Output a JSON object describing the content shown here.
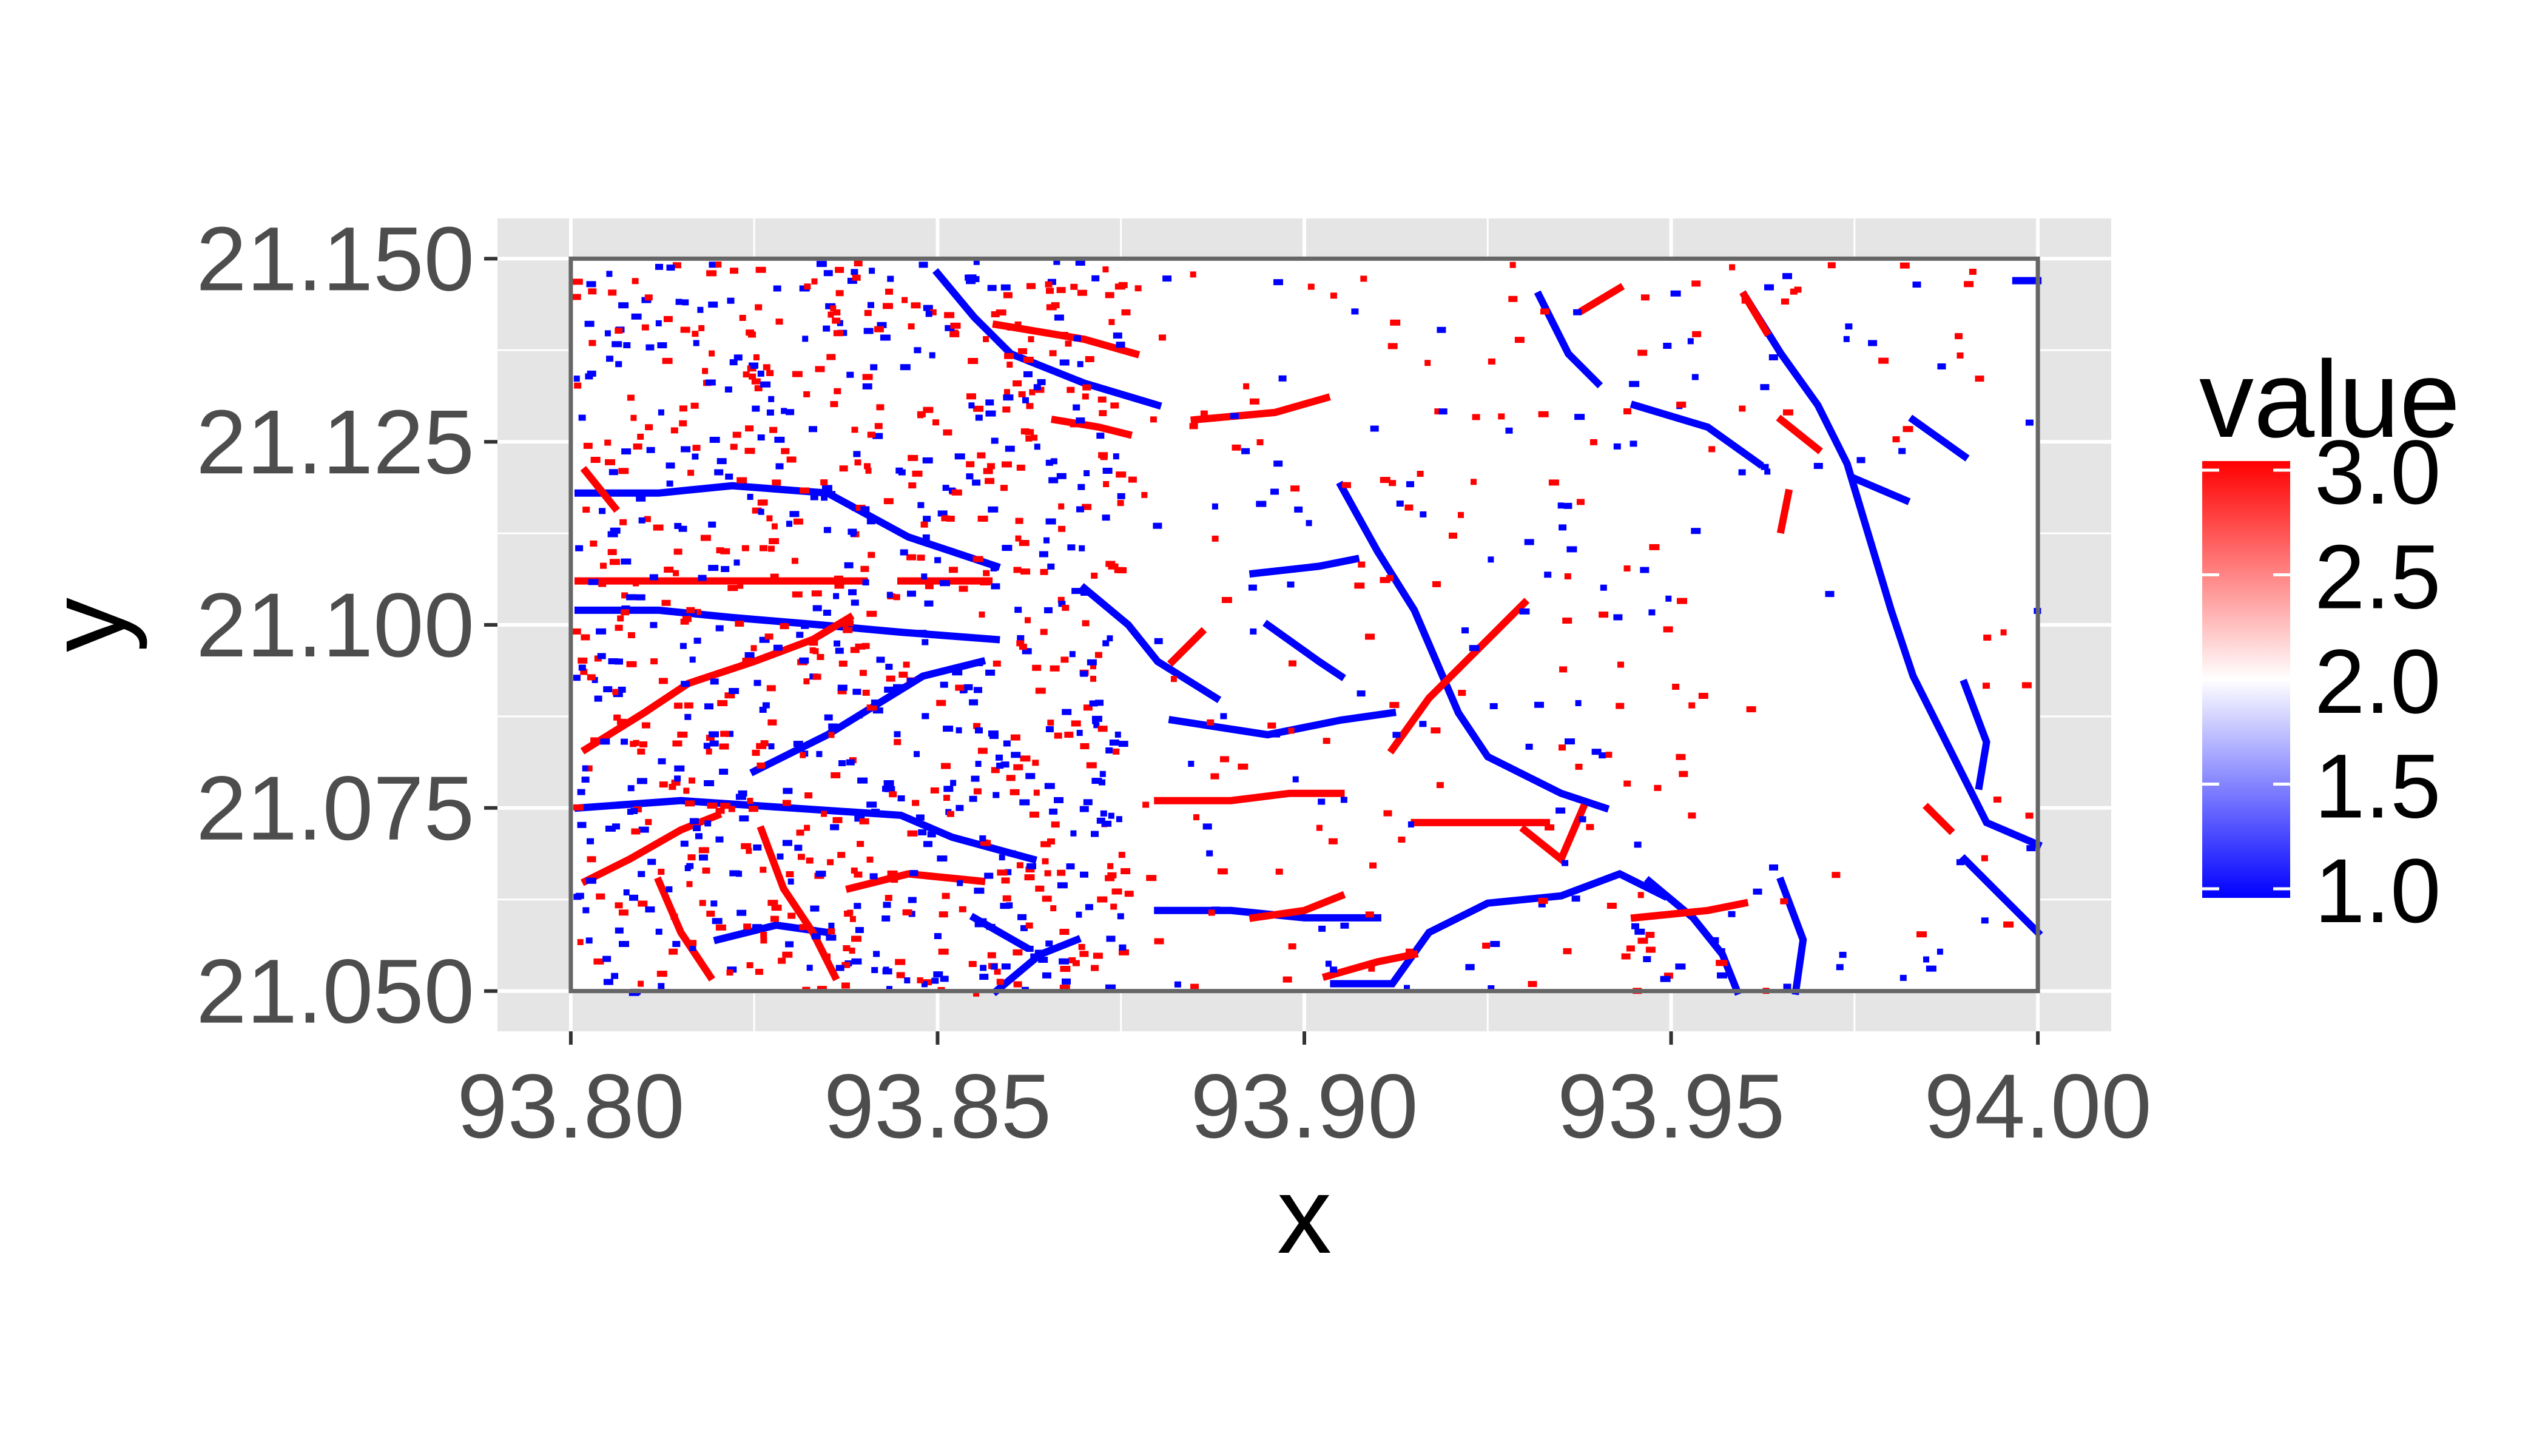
{
  "chart_data": {
    "type": "heatmap",
    "title": "",
    "xlabel": "x",
    "ylabel": "y",
    "xlim": [
      93.79,
      94.01
    ],
    "ylim": [
      21.0445,
      21.1555
    ],
    "x_ticks": [
      93.8,
      93.85,
      93.9,
      93.95,
      94.0
    ],
    "x_tick_labels": [
      "93.80",
      "93.85",
      "93.90",
      "93.95",
      "94.00"
    ],
    "y_ticks": [
      21.05,
      21.075,
      21.1,
      21.125,
      21.15
    ],
    "y_tick_labels": [
      "21.050",
      "21.075",
      "21.100",
      "21.125",
      "21.150"
    ],
    "raster_extent": {
      "x": [
        93.8,
        94.0
      ],
      "y": [
        21.05,
        21.15
      ]
    },
    "grid": true,
    "legend": {
      "title": "value",
      "placement": "right",
      "range": [
        1.0,
        3.0
      ],
      "breaks": [
        3.0,
        2.5,
        2.0,
        1.5,
        1.0
      ],
      "break_labels": [
        "3.0",
        "2.5",
        "2.0",
        "1.5",
        "1.0"
      ],
      "colors": {
        "low": "#0000ff",
        "mid": "#ffffff",
        "high": "#ff0000"
      },
      "midpoint": 2.0
    },
    "colors": {
      "panel_background": "#e5e5e5",
      "grid_line": "#ffffff",
      "raster_border": "#666666",
      "value_1": "#0000ff",
      "value_2": "#ffffff",
      "value_3": "#ff0000"
    },
    "series": [
      {
        "value": 1,
        "segments": [
          [
            [
              93.801,
              21.118
            ],
            [
              93.812,
              21.118
            ],
            [
              93.822,
              21.119
            ],
            [
              93.835,
              21.118
            ],
            [
              93.846,
              21.112
            ],
            [
              93.858,
              21.108
            ]
          ],
          [
            [
              93.801,
              21.102
            ],
            [
              93.812,
              21.102
            ],
            [
              93.822,
              21.101
            ],
            [
              93.834,
              21.1
            ],
            [
              93.845,
              21.099
            ],
            [
              93.858,
              21.098
            ]
          ],
          [
            [
              93.801,
              21.075
            ],
            [
              93.815,
              21.076
            ],
            [
              93.83,
              21.075
            ],
            [
              93.845,
              21.074
            ],
            [
              93.852,
              21.071
            ],
            [
              93.863,
              21.068
            ]
          ],
          [
            [
              93.825,
              21.08
            ],
            [
              93.835,
              21.085
            ],
            [
              93.848,
              21.093
            ],
            [
              93.856,
              21.095
            ]
          ],
          [
            [
              93.85,
              21.148
            ],
            [
              93.855,
              21.142
            ],
            [
              93.86,
              21.137
            ],
            [
              93.87,
              21.133
            ],
            [
              93.88,
              21.13
            ]
          ],
          [
            [
              93.82,
              21.057
            ],
            [
              93.828,
              21.059
            ],
            [
              93.835,
              21.058
            ]
          ],
          [
            [
              93.855,
              21.06
            ],
            [
              93.862,
              21.056
            ]
          ],
          [
            [
              93.858,
              21.05
            ],
            [
              93.864,
              21.055
            ],
            [
              93.869,
              21.057
            ]
          ],
          [
            [
              93.87,
              21.105
            ],
            [
              93.876,
              21.1
            ],
            [
              93.88,
              21.095
            ],
            [
              93.888,
              21.09
            ]
          ],
          [
            [
              93.882,
              21.087
            ],
            [
              93.895,
              21.085
            ],
            [
              93.905,
              21.087
            ],
            [
              93.912,
              21.088
            ]
          ],
          [
            [
              93.893,
              21.107
            ],
            [
              93.902,
              21.108
            ],
            [
              93.907,
              21.109
            ]
          ],
          [
            [
              93.905,
              21.119
            ],
            [
              93.91,
              21.11
            ],
            [
              93.915,
              21.102
            ],
            [
              93.918,
              21.095
            ],
            [
              93.921,
              21.088
            ],
            [
              93.925,
              21.082
            ],
            [
              93.935,
              21.077
            ],
            [
              93.941,
              21.075
            ]
          ],
          [
            [
              93.895,
              21.1
            ],
            [
              93.902,
              21.095
            ],
            [
              93.905,
              21.093
            ]
          ],
          [
            [
              93.88,
              21.061
            ],
            [
              93.89,
              21.061
            ],
            [
              93.9,
              21.06
            ],
            [
              93.91,
              21.06
            ]
          ],
          [
            [
              93.904,
              21.051
            ],
            [
              93.912,
              21.051
            ],
            [
              93.917,
              21.058
            ],
            [
              93.925,
              21.062
            ],
            [
              93.935,
              21.063
            ],
            [
              93.943,
              21.066
            ],
            [
              93.949,
              21.063
            ]
          ],
          [
            [
              93.947,
              21.065
            ],
            [
              93.953,
              21.06
            ],
            [
              93.957,
              21.055
            ],
            [
              93.959,
              21.05
            ]
          ],
          [
            [
              93.932,
              21.145
            ],
            [
              93.936,
              21.137
            ],
            [
              93.94,
              21.133
            ]
          ],
          [
            [
              93.945,
              21.13
            ],
            [
              93.955,
              21.127
            ],
            [
              93.962,
              21.122
            ]
          ],
          [
            [
              93.96,
              21.145
            ],
            [
              93.965,
              21.137
            ],
            [
              93.97,
              21.13
            ],
            [
              93.974,
              21.122
            ],
            [
              93.977,
              21.112
            ],
            [
              93.98,
              21.102
            ],
            [
              93.983,
              21.093
            ],
            [
              93.988,
              21.083
            ],
            [
              93.993,
              21.073
            ],
            [
              94.0,
              21.07
            ]
          ],
          [
            [
              93.99,
              21.123
            ],
            [
              93.983,
              21.128
            ]
          ],
          [
            [
              93.975,
              21.12
            ],
            [
              93.982,
              21.117
            ]
          ],
          [
            [
              93.99,
              21.068
            ],
            [
              93.995,
              21.063
            ],
            [
              94.0,
              21.058
            ]
          ],
          [
            [
              93.99,
              21.092
            ],
            [
              93.993,
              21.084
            ],
            [
              93.992,
              21.078
            ]
          ],
          [
            [
              93.965,
              21.065
            ],
            [
              93.968,
              21.057
            ],
            [
              93.967,
              21.05
            ]
          ],
          [
            [
              93.997,
              21.147
            ],
            [
              94.0,
              21.147
            ]
          ]
        ]
      },
      {
        "value": 3,
        "segments": [
          [
            [
              93.801,
              21.106
            ],
            [
              93.815,
              21.106
            ],
            [
              93.83,
              21.106
            ],
            [
              93.84,
              21.106
            ]
          ],
          [
            [
              93.845,
              21.106
            ],
            [
              93.857,
              21.106
            ]
          ],
          [
            [
              93.802,
              21.121
            ],
            [
              93.806,
              21.116
            ]
          ],
          [
            [
              93.802,
              21.083
            ],
            [
              93.81,
              21.088
            ],
            [
              93.816,
              21.092
            ],
            [
              93.825,
              21.095
            ],
            [
              93.833,
              21.098
            ],
            [
              93.838,
              21.101
            ]
          ],
          [
            [
              93.802,
              21.065
            ],
            [
              93.808,
              21.068
            ],
            [
              93.815,
              21.072
            ],
            [
              93.82,
              21.074
            ]
          ],
          [
            [
              93.812,
              21.065
            ],
            [
              93.815,
              21.058
            ],
            [
              93.819,
              21.052
            ]
          ],
          [
            [
              93.826,
              21.072
            ],
            [
              93.829,
              21.064
            ],
            [
              93.833,
              21.058
            ],
            [
              93.836,
              21.052
            ]
          ],
          [
            [
              93.838,
              21.064
            ],
            [
              93.846,
              21.066
            ],
            [
              93.856,
              21.065
            ]
          ],
          [
            [
              93.866,
              21.128
            ],
            [
              93.872,
              21.127
            ],
            [
              93.876,
              21.126
            ]
          ],
          [
            [
              93.858,
              21.141
            ],
            [
              93.87,
              21.139
            ],
            [
              93.877,
              21.137
            ]
          ],
          [
            [
              93.88,
              21.076
            ],
            [
              93.89,
              21.076
            ],
            [
              93.898,
              21.077
            ],
            [
              93.905,
              21.077
            ]
          ],
          [
            [
              93.903,
              21.052
            ],
            [
              93.91,
              21.054
            ],
            [
              93.915,
              21.055
            ]
          ],
          [
            [
              93.893,
              21.06
            ],
            [
              93.9,
              21.061
            ],
            [
              93.905,
              21.063
            ]
          ],
          [
            [
              93.915,
              21.073
            ],
            [
              93.925,
              21.073
            ],
            [
              93.933,
              21.073
            ]
          ],
          [
            [
              93.912,
              21.083
            ],
            [
              93.917,
              21.09
            ],
            [
              93.924,
              21.097
            ],
            [
              93.93,
              21.103
            ]
          ],
          [
            [
              93.885,
              21.128
            ],
            [
              93.896,
              21.129
            ],
            [
              93.903,
              21.131
            ]
          ],
          [
            [
              93.882,
              21.095
            ],
            [
              93.886,
              21.099
            ]
          ],
          [
            [
              93.945,
              21.06
            ],
            [
              93.955,
              21.061
            ],
            [
              93.96,
              21.062
            ]
          ],
          [
            [
              93.93,
              21.072
            ],
            [
              93.935,
              21.068
            ],
            [
              93.938,
              21.075
            ]
          ],
          [
            [
              93.965,
              21.113
            ],
            [
              93.966,
              21.118
            ]
          ],
          [
            [
              93.985,
              21.075
            ],
            [
              93.988,
              21.072
            ]
          ],
          [
            [
              93.96,
              21.145
            ],
            [
              93.963,
              21.14
            ]
          ],
          [
            [
              93.965,
              21.128
            ],
            [
              93.97,
              21.124
            ]
          ],
          [
            [
              93.938,
              21.143
            ],
            [
              93.943,
              21.146
            ]
          ]
        ]
      }
    ]
  }
}
